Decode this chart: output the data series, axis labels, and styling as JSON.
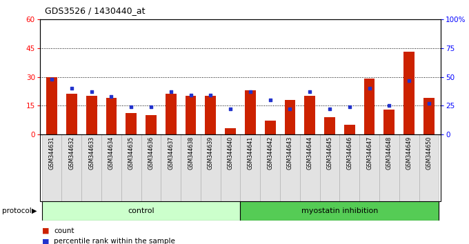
{
  "title": "GDS3526 / 1430440_at",
  "samples": [
    "GSM344631",
    "GSM344632",
    "GSM344633",
    "GSM344634",
    "GSM344635",
    "GSM344636",
    "GSM344637",
    "GSM344638",
    "GSM344639",
    "GSM344640",
    "GSM344641",
    "GSM344642",
    "GSM344643",
    "GSM344644",
    "GSM344645",
    "GSM344646",
    "GSM344647",
    "GSM344648",
    "GSM344649",
    "GSM344650"
  ],
  "counts": [
    30,
    21,
    20,
    19,
    11,
    10,
    21,
    20,
    20,
    3,
    23,
    7,
    18,
    20,
    9,
    5,
    29,
    13,
    43,
    19
  ],
  "percentiles": [
    48,
    40,
    37,
    33,
    24,
    24,
    37,
    34,
    34,
    22,
    37,
    30,
    22,
    37,
    22,
    24,
    40,
    25,
    47,
    27
  ],
  "control_count": 10,
  "groups": [
    "control",
    "myostatin inhibition"
  ],
  "bar_color": "#cc2200",
  "dot_color": "#2233cc",
  "bg_color_control": "#ccffcc",
  "bg_color_treatment": "#55cc55",
  "ylim_left": [
    0,
    60
  ],
  "ylim_right": [
    0,
    100
  ],
  "yticks_left": [
    0,
    15,
    30,
    45,
    60
  ],
  "yticks_right": [
    0,
    25,
    50,
    75,
    100
  ],
  "ytick_labels_right": [
    "0",
    "25",
    "50",
    "75",
    "100%"
  ],
  "grid_lines": [
    15,
    30,
    45
  ],
  "legend_count": "count",
  "legend_pct": "percentile rank within the sample",
  "protocol_label": "protocol"
}
